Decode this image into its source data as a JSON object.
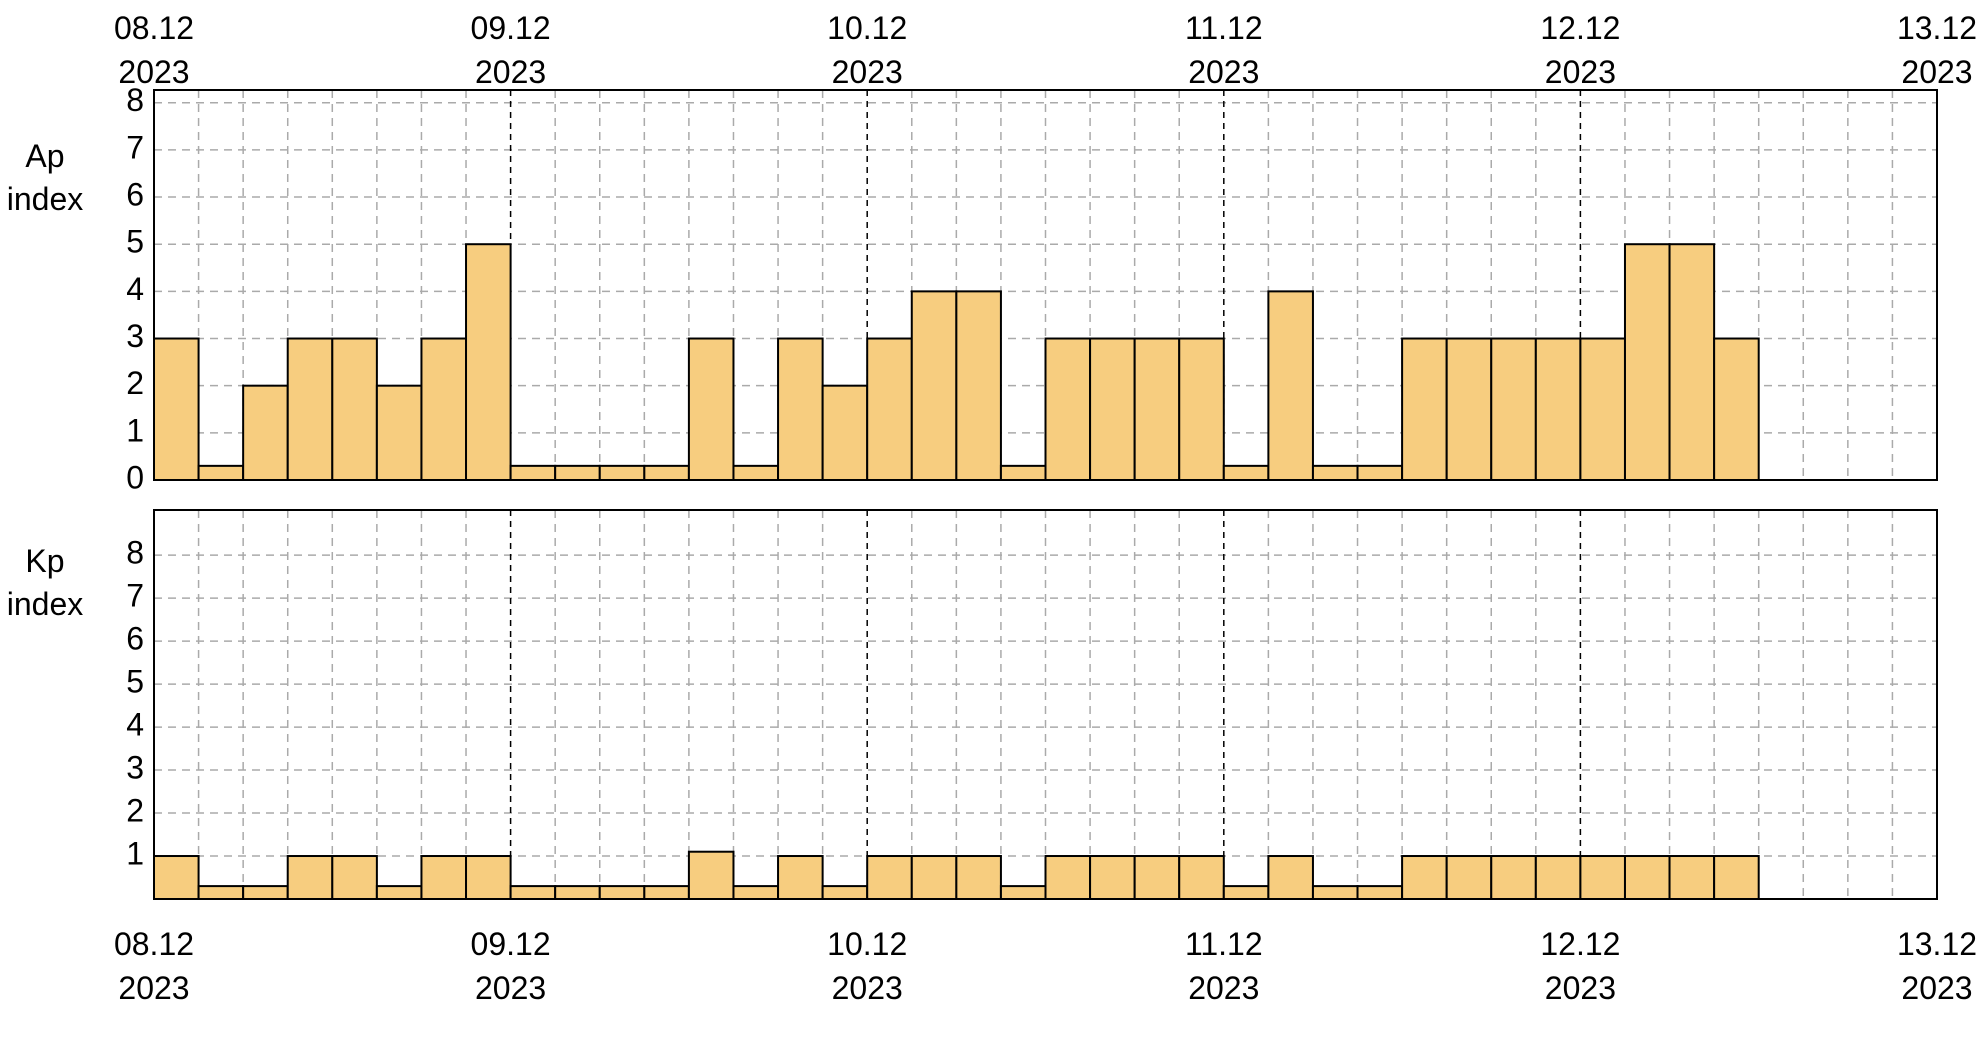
{
  "chart_data": [
    {
      "type": "histogram",
      "ylabel": "Ap index",
      "color": "#f7cd7f",
      "edge_color": "#000000",
      "bins": [
        0,
        3,
        6,
        9,
        12,
        15,
        18,
        21,
        24,
        27,
        30,
        33,
        36,
        39,
        42,
        45,
        48,
        51,
        54,
        57,
        60,
        63,
        66,
        69,
        72,
        75,
        78,
        81,
        84,
        87,
        90,
        93,
        96,
        99,
        102,
        105,
        108
      ],
      "values": [
        3,
        0.3,
        2,
        3,
        3,
        2,
        3,
        5,
        0.3,
        0.3,
        0.3,
        0.3,
        3,
        0.3,
        3,
        2,
        3,
        4,
        4,
        0.3,
        3,
        3,
        3,
        3,
        0.3,
        4,
        0.3,
        0.3,
        3,
        3,
        3,
        3,
        3,
        5,
        5,
        3
      ],
      "xlim": [
        0,
        120
      ],
      "xticks": [
        {
          "value": 0,
          "label": "08.12 2023"
        },
        {
          "value": 24,
          "label": "09.12 2023"
        },
        {
          "value": 48,
          "label": "10.12 2023"
        },
        {
          "value": 72,
          "label": "11.12 2023"
        },
        {
          "value": 96,
          "label": "12.12 2023"
        },
        {
          "value": 120,
          "label": "13.12 2023"
        }
      ],
      "xtick_position": "top",
      "ylim": [
        0,
        8.27
      ],
      "yticks": [
        0,
        1,
        2,
        3,
        4,
        5,
        6,
        7,
        8
      ],
      "grid": true
    },
    {
      "type": "histogram",
      "ylabel": "Kp index",
      "color": "#f7cd7f",
      "edge_color": "#000000",
      "bins": [
        0,
        3,
        6,
        9,
        12,
        15,
        18,
        21,
        24,
        27,
        30,
        33,
        36,
        39,
        42,
        45,
        48,
        51,
        54,
        57,
        60,
        63,
        66,
        69,
        72,
        75,
        78,
        81,
        84,
        87,
        90,
        93,
        96,
        99,
        102,
        105,
        108
      ],
      "values": [
        1,
        0.3,
        0.3,
        1,
        1,
        0.3,
        1,
        1,
        0.3,
        0.3,
        0.3,
        0.3,
        1.1,
        0.3,
        1,
        0.3,
        1,
        1,
        1,
        0.3,
        1,
        1,
        1,
        1,
        0.3,
        1,
        0.3,
        0.3,
        1,
        1,
        1,
        1,
        1,
        1,
        1,
        1
      ],
      "xlim": [
        0,
        120
      ],
      "xticks": [
        {
          "value": 0,
          "label": "08.12 2023"
        },
        {
          "value": 24,
          "label": "09.12 2023"
        },
        {
          "value": 48,
          "label": "10.12 2023"
        },
        {
          "value": 72,
          "label": "11.12 2023"
        },
        {
          "value": 96,
          "label": "12.12 2023"
        },
        {
          "value": 120,
          "label": "13.12 2023"
        }
      ],
      "xtick_position": "bottom",
      "ylim": [
        0,
        9.05
      ],
      "yticks": [
        1,
        2,
        3,
        4,
        5,
        6,
        7,
        8
      ],
      "grid": true
    }
  ]
}
